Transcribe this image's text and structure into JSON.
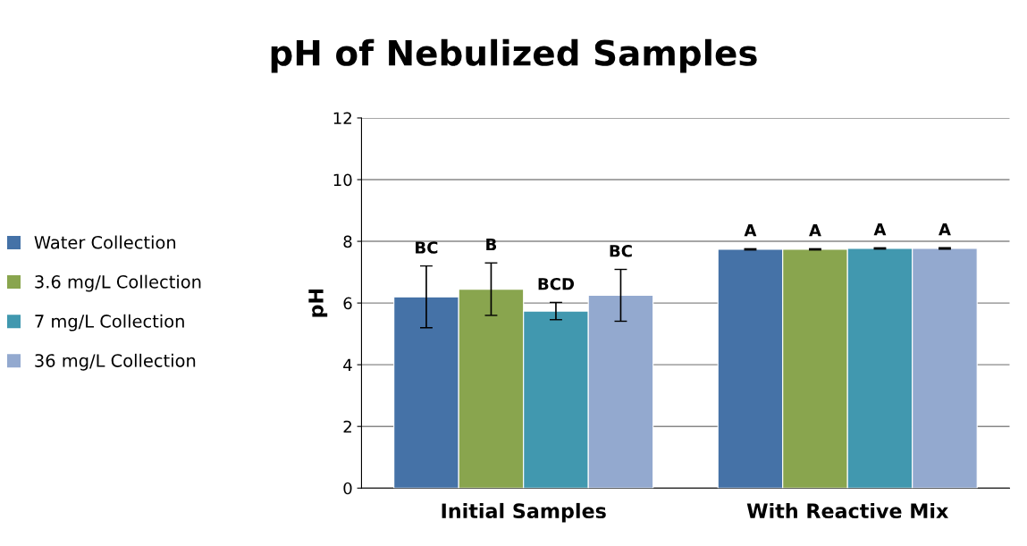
{
  "chart_data": {
    "type": "bar",
    "title": "pH of Nebulized Samples",
    "ylabel": "pH",
    "categories": [
      "Initial Samples",
      "With Reactive Mix"
    ],
    "series": [
      {
        "name": "Water Collection",
        "color": "#4572a7",
        "values": [
          6.2,
          7.74
        ],
        "errors": [
          1.0,
          0.02
        ],
        "value_labels": [
          "BC",
          "A"
        ]
      },
      {
        "name": "3.6 mg/L Collection",
        "color": "#89a54e",
        "values": [
          6.45,
          7.74
        ],
        "errors": [
          0.85,
          0.02
        ],
        "value_labels": [
          "B",
          "A"
        ]
      },
      {
        "name": "7 mg/L Collection",
        "color": "#4198af",
        "values": [
          5.74,
          7.77
        ],
        "errors": [
          0.28,
          0.02
        ],
        "value_labels": [
          "BCD",
          "A"
        ]
      },
      {
        "name": "36 mg/L Collection",
        "color": "#93a9cf",
        "values": [
          6.25,
          7.77
        ],
        "errors": [
          0.84,
          0.02
        ],
        "value_labels": [
          "BC",
          "A"
        ]
      }
    ],
    "ylim": [
      0,
      12
    ],
    "yticks": [
      0,
      2,
      4,
      6,
      8,
      10,
      12
    ],
    "grid": "y",
    "legend": "left"
  }
}
